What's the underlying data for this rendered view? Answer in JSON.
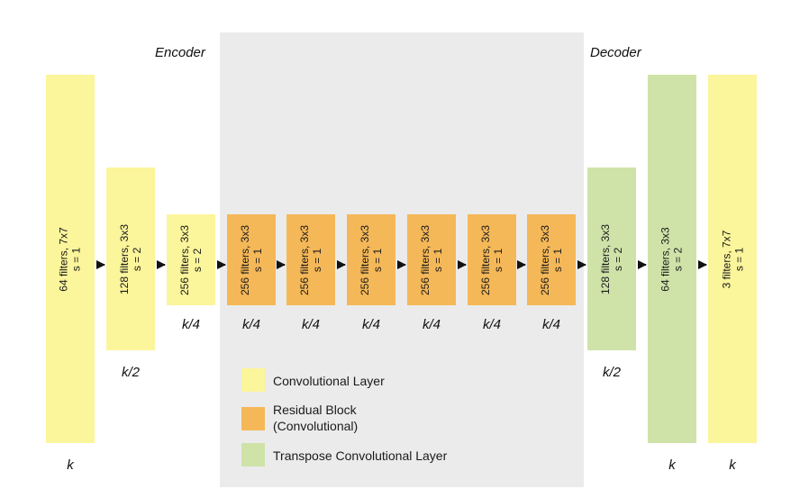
{
  "sections": {
    "encoder": "Encoder",
    "decoder": "Decoder"
  },
  "colors": {
    "convolutional": "#fbf59b",
    "residual": "#f5b858",
    "transpose": "#cfe3a9",
    "residual_region": "#ebebeb"
  },
  "blocks": [
    {
      "type": "convolutional",
      "label": "64 filters, 7x7\ns = 1",
      "size": "k"
    },
    {
      "type": "convolutional",
      "label": "128 filters, 3x3\ns = 2",
      "size": "k/2"
    },
    {
      "type": "convolutional",
      "label": "256 filters, 3x3\ns = 2",
      "size": "k/4"
    },
    {
      "type": "residual",
      "label": "256 filters, 3x3\ns = 1",
      "size": "k/4"
    },
    {
      "type": "residual",
      "label": "256 filters, 3x3\ns = 1",
      "size": "k/4"
    },
    {
      "type": "residual",
      "label": "256 filters, 3x3\ns = 1",
      "size": "k/4"
    },
    {
      "type": "residual",
      "label": "256 filters, 3x3\ns = 1",
      "size": "k/4"
    },
    {
      "type": "residual",
      "label": "256 filters, 3x3\ns = 1",
      "size": "k/4"
    },
    {
      "type": "residual",
      "label": "256 filters, 3x3\ns = 1",
      "size": "k/4"
    },
    {
      "type": "transpose",
      "label": "128 filters, 3x3\ns = 2",
      "size": "k/2"
    },
    {
      "type": "transpose",
      "label": "64 filters, 3x3\ns = 2",
      "size": "k"
    },
    {
      "type": "convolutional",
      "label": "3 filters, 7x7\ns = 1",
      "size": "k"
    }
  ],
  "legend": [
    {
      "type": "convolutional",
      "label": "Convolutional Layer"
    },
    {
      "type": "residual",
      "label": "Residual Block\n(Convolutional)"
    },
    {
      "type": "transpose",
      "label": "Transpose Convolutional Layer"
    }
  ]
}
